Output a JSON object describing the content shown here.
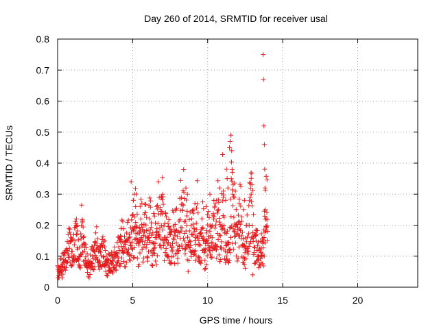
{
  "chart_data": {
    "type": "scatter",
    "title": "Day 260 of 2014, SRMTID for receiver usal",
    "xlabel": "GPS time / hours",
    "ylabel": "SRMTID / TECUs",
    "xlim": [
      0,
      24
    ],
    "ylim": [
      0,
      0.8
    ],
    "x_ticks": [
      "0",
      "5",
      "10",
      "15",
      "20"
    ],
    "y_ticks": [
      "0",
      "0.1",
      "0.2",
      "0.3",
      "0.4",
      "0.5",
      "0.6",
      "0.7",
      "0.8"
    ],
    "grid": true,
    "marker": "+",
    "color": "#e41a1c",
    "series": [
      {
        "name": "SRMTID",
        "x": [
          0.0,
          0.1,
          0.2,
          0.3,
          0.4,
          0.5,
          0.6,
          0.7,
          0.8,
          0.9,
          1.0,
          1.1,
          1.2,
          1.3,
          1.4,
          1.5,
          1.6,
          1.7,
          1.8,
          1.9,
          2.0,
          2.1,
          2.2,
          2.3,
          2.4,
          2.5,
          2.6,
          2.7,
          2.8,
          2.9,
          3.0,
          3.1,
          3.2,
          3.3,
          3.4,
          3.5,
          3.6,
          3.7,
          3.8,
          3.9,
          4.0,
          4.1,
          4.2,
          4.3,
          4.4,
          4.5,
          4.6,
          4.7,
          4.8,
          4.9,
          5.0,
          5.1,
          5.2,
          5.3,
          5.4,
          5.5,
          5.6,
          5.7,
          5.8,
          5.9,
          6.0,
          6.1,
          6.2,
          6.3,
          6.4,
          6.5,
          6.6,
          6.7,
          6.8,
          6.9,
          7.0,
          7.1,
          7.2,
          7.3,
          7.4,
          7.5,
          7.6,
          7.7,
          7.8,
          7.9,
          8.0,
          8.1,
          8.2,
          8.3,
          8.4,
          8.5,
          8.6,
          8.7,
          8.8,
          8.9,
          9.0,
          9.1,
          9.2,
          9.3,
          9.4,
          9.5,
          9.6,
          9.7,
          9.8,
          9.9,
          10.0,
          10.1,
          10.2,
          10.3,
          10.4,
          10.5,
          10.6,
          10.7,
          10.8,
          10.9,
          11.0,
          11.1,
          11.2,
          11.3,
          11.4,
          11.5,
          11.6,
          11.7,
          11.8,
          11.9,
          12.0,
          12.1,
          12.2,
          12.3,
          12.4,
          12.5,
          12.6,
          12.7,
          12.8,
          12.9,
          13.0,
          13.1,
          13.2,
          13.3,
          13.4,
          13.5,
          13.6,
          13.7,
          13.8,
          13.9
        ],
        "values": [
          0.06,
          0.04,
          0.07,
          0.05,
          0.09,
          0.08,
          0.1,
          0.12,
          0.15,
          0.13,
          0.1,
          0.12,
          0.18,
          0.14,
          0.1,
          0.08,
          0.2,
          0.15,
          0.11,
          0.09,
          0.07,
          0.06,
          0.08,
          0.09,
          0.1,
          0.12,
          0.14,
          0.1,
          0.08,
          0.11,
          0.13,
          0.09,
          0.08,
          0.07,
          0.08,
          0.06,
          0.09,
          0.07,
          0.1,
          0.08,
          0.11,
          0.12,
          0.14,
          0.15,
          0.13,
          0.12,
          0.13,
          0.16,
          0.12,
          0.15,
          0.2,
          0.14,
          0.23,
          0.17,
          0.12,
          0.18,
          0.2,
          0.13,
          0.21,
          0.19,
          0.11,
          0.2,
          0.22,
          0.1,
          0.16,
          0.15,
          0.14,
          0.25,
          0.18,
          0.2,
          0.28,
          0.13,
          0.2,
          0.11,
          0.17,
          0.15,
          0.11,
          0.19,
          0.14,
          0.22,
          0.1,
          0.18,
          0.25,
          0.2,
          0.29,
          0.13,
          0.22,
          0.1,
          0.18,
          0.13,
          0.21,
          0.15,
          0.12,
          0.26,
          0.1,
          0.14,
          0.16,
          0.2,
          0.09,
          0.13,
          0.18,
          0.16,
          0.15,
          0.14,
          0.22,
          0.21,
          0.12,
          0.27,
          0.16,
          0.13,
          0.3,
          0.18,
          0.11,
          0.14,
          0.1,
          0.15,
          0.35,
          0.2,
          0.23,
          0.18,
          0.16,
          0.2,
          0.25,
          0.14,
          0.11,
          0.1,
          0.18,
          0.13,
          0.26,
          0.3,
          0.21,
          0.12,
          0.15,
          0.14,
          0.09,
          0.1,
          0.13,
          0.11,
          0.2,
          0.24
        ],
        "extra_points": [
          [
            0.05,
            0.03
          ],
          [
            0.25,
            0.05
          ],
          [
            0.35,
            0.11
          ],
          [
            0.95,
            0.1
          ],
          [
            1.25,
            0.22
          ],
          [
            1.3,
            0.2
          ],
          [
            1.65,
            0.21
          ],
          [
            2.85,
            0.13
          ],
          [
            3.15,
            0.15
          ],
          [
            4.9,
            0.34
          ],
          [
            5.05,
            0.28
          ],
          [
            5.1,
            0.3
          ],
          [
            5.2,
            0.26
          ],
          [
            5.45,
            0.19
          ],
          [
            5.55,
            0.22
          ],
          [
            5.85,
            0.24
          ],
          [
            6.6,
            0.26
          ],
          [
            6.9,
            0.29
          ],
          [
            7.0,
            0.3
          ],
          [
            8.55,
            0.32
          ],
          [
            8.65,
            0.3
          ],
          [
            9.05,
            0.25
          ],
          [
            9.15,
            0.27
          ],
          [
            9.9,
            0.26
          ],
          [
            10.15,
            0.3
          ],
          [
            10.6,
            0.28
          ],
          [
            10.8,
            0.32
          ],
          [
            11.05,
            0.31
          ],
          [
            11.2,
            0.28
          ],
          [
            11.25,
            0.38
          ],
          [
            11.3,
            0.35
          ],
          [
            11.35,
            0.32
          ],
          [
            11.45,
            0.45
          ],
          [
            11.5,
            0.47
          ],
          [
            11.55,
            0.49
          ],
          [
            11.6,
            0.44
          ],
          [
            11.65,
            0.37
          ],
          [
            11.7,
            0.33
          ],
          [
            11.8,
            0.29
          ],
          [
            12.1,
            0.27
          ],
          [
            12.4,
            0.25
          ],
          [
            12.45,
            0.28
          ],
          [
            12.9,
            0.3
          ],
          [
            12.95,
            0.33
          ],
          [
            13.0,
            0.04
          ],
          [
            13.4,
            0.1
          ],
          [
            13.7,
            0.75
          ],
          [
            13.72,
            0.67
          ],
          [
            13.75,
            0.52
          ],
          [
            13.78,
            0.46
          ],
          [
            13.8,
            0.38
          ],
          [
            13.82,
            0.32
          ],
          [
            13.85,
            0.25
          ],
          [
            13.9,
            0.22
          ],
          [
            13.95,
            0.2
          ],
          [
            14.0,
            0.18
          ]
        ]
      }
    ]
  }
}
